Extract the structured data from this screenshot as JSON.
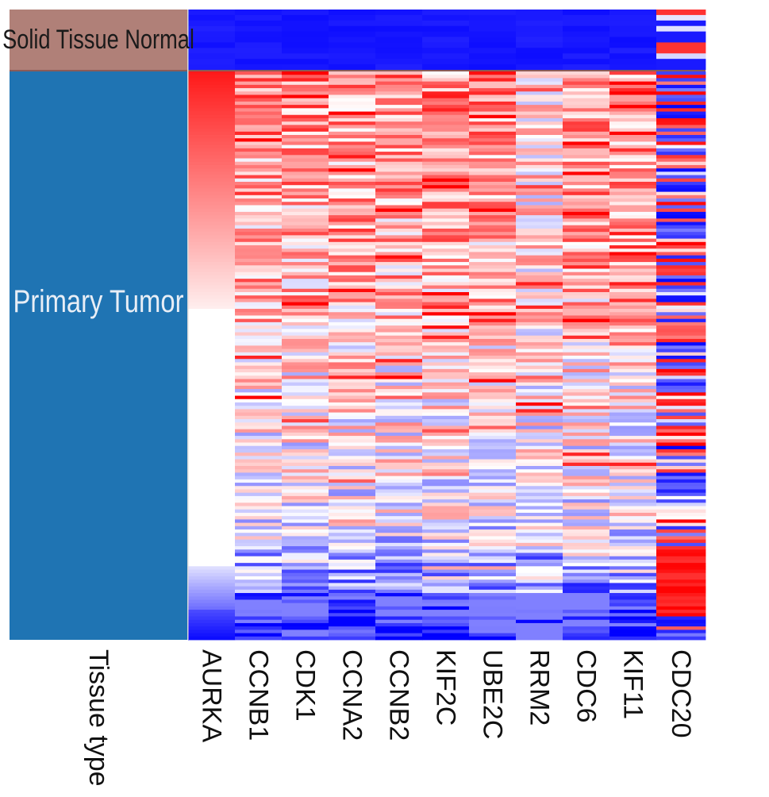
{
  "chart_data": {
    "type": "heatmap",
    "annotation_track": {
      "name": "Tissue type",
      "groups": [
        {
          "label": "Solid Tissue Normal",
          "color": "#b08078",
          "samples": 11
        },
        {
          "label": "Primary Tumor",
          "color": "#1f74b3",
          "samples": 170
        }
      ]
    },
    "genes": [
      "AURKA",
      "CCNB1",
      "CDK1",
      "CCNA2",
      "CCNB2",
      "KIF2C",
      "UBE2C",
      "RRM2",
      "CDC6",
      "KIF11",
      "CDC20"
    ],
    "color_scale": {
      "low": "#0000ff",
      "mid": "#ffffff",
      "high": "#ff0000"
    },
    "sort_by": "AURKA",
    "approx_profile": {
      "normal": "strong blue (low) for all genes except CDC20, which is mixed",
      "tumor": "mostly red/white (high), blue at bottom rows; CDC20 mixed red/blue"
    }
  }
}
